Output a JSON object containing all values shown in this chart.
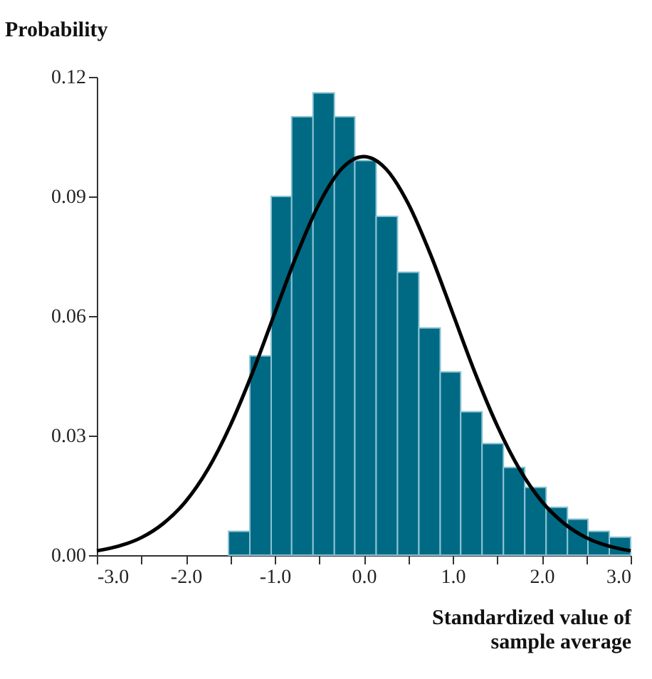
{
  "chart_data": {
    "type": "histogram",
    "ylabel": "Probability",
    "xlabel": "Standardized value of\nsample average",
    "bins": [
      -1.52,
      -1.28,
      -1.04,
      -0.81,
      -0.57,
      -0.33,
      -0.1,
      0.14,
      0.38,
      0.62,
      0.86,
      1.09,
      1.33,
      1.57,
      1.81,
      2.05,
      2.29,
      2.52,
      2.76,
      3.0
    ],
    "values": [
      0.006,
      0.05,
      0.09,
      0.11,
      0.116,
      0.11,
      0.099,
      0.085,
      0.071,
      0.057,
      0.046,
      0.036,
      0.028,
      0.022,
      0.017,
      0.012,
      0.009,
      0.006,
      0.0045
    ],
    "color": "#006a85",
    "series": [
      {
        "type": "line",
        "color": "#000000",
        "x": [
          -3,
          -2.75,
          -2.5,
          -2.25,
          -2,
          -1.75,
          -1.5,
          -1.25,
          -1,
          -0.75,
          -0.5,
          -0.25,
          0,
          0.25,
          0.5,
          0.75,
          1,
          1.25,
          1.5,
          1.75,
          2,
          2.25,
          2.5,
          2.75,
          3
        ],
        "values": [
          0.0011,
          0.0023,
          0.0044,
          0.008,
          0.0135,
          0.0216,
          0.0325,
          0.0458,
          0.0607,
          0.0755,
          0.0882,
          0.0969,
          0.1,
          0.0969,
          0.0882,
          0.0755,
          0.0607,
          0.0458,
          0.0325,
          0.0216,
          0.0135,
          0.008,
          0.0044,
          0.0023,
          0.0011
        ]
      }
    ],
    "xlim": [
      -3.0,
      3.0
    ],
    "xticks": [
      {
        "value": -3,
        "label": "-3.0"
      },
      {
        "value": -2.5,
        "label": null
      },
      {
        "value": -2,
        "label": "-2.0"
      },
      {
        "value": -1.5,
        "label": null
      },
      {
        "value": -1,
        "label": "-1.0"
      },
      {
        "value": -0.5,
        "label": null
      },
      {
        "value": 0,
        "label": "0.0"
      },
      {
        "value": 0.5,
        "label": null
      },
      {
        "value": 1,
        "label": "1.0"
      },
      {
        "value": 1.5,
        "label": null
      },
      {
        "value": 2,
        "label": "2.0"
      },
      {
        "value": 2.5,
        "label": null
      },
      {
        "value": 3,
        "label": "3.0"
      }
    ],
    "ylim": [
      0,
      0.12
    ],
    "yticks": [
      {
        "value": 0,
        "label": "0.00"
      },
      {
        "value": 0.03,
        "label": "0.03"
      },
      {
        "value": 0.06,
        "label": "0.06"
      },
      {
        "value": 0.09,
        "label": "0.09"
      },
      {
        "value": 0.12,
        "label": "0.12"
      }
    ],
    "grid": false,
    "marker": "none",
    "line_style": "solid"
  }
}
